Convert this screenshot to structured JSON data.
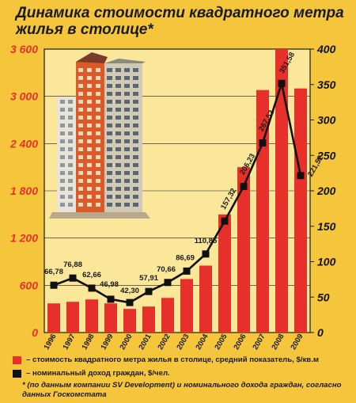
{
  "title": "Динамика стоимости квадратного метра жилья в столице*",
  "colors": {
    "background": "#f5c63c",
    "plot_background": "#fbe79a",
    "bar": "#e8302a",
    "line": "#111111",
    "left_axis_text": "#e8302a",
    "right_axis_text": "#111111"
  },
  "chart_data": {
    "type": "bar",
    "categories": [
      "1996",
      "1997",
      "1998",
      "1999",
      "2000",
      "2001",
      "2002",
      "2003",
      "2004",
      "2005",
      "2006",
      "2007",
      "2008",
      "2009"
    ],
    "y_left": {
      "ticks": [
        "0",
        "600",
        "1 200",
        "1 800",
        "2 400",
        "3 000",
        "3 600"
      ],
      "range": [
        0,
        3600
      ]
    },
    "y_right": {
      "ticks": [
        "0",
        "50",
        "100",
        "150",
        "200",
        "250",
        "300",
        "350",
        "400"
      ],
      "range": [
        0,
        400
      ]
    },
    "grid": true,
    "series": [
      {
        "name": "– стоимость квадратного метра жилья в столице, средний показатель, $/кв.м",
        "axis": "left",
        "kind": "bar",
        "values": [
          370,
          390,
          420,
          370,
          300,
          330,
          440,
          680,
          850,
          1500,
          2100,
          3080,
          3620,
          3100
        ]
      },
      {
        "name": "– номинальный доход граждан, $/чел.",
        "axis": "right",
        "kind": "line",
        "values": [
          66.78,
          76.88,
          62.66,
          46.98,
          42.3,
          57.91,
          70.66,
          86.69,
          110.85,
          157.32,
          206.23,
          267.52,
          351.58,
          221.52
        ],
        "labels": [
          "66,78",
          "76,88",
          "62,66",
          "46,98",
          "42,30",
          "57,91",
          "70,66",
          "86,69",
          "110,85",
          "157,32",
          "206,23",
          "267,52",
          "351,58",
          "221,52"
        ]
      }
    ],
    "legend_position": "bottom"
  },
  "footnote": "* (по данным компании SV Development) и номинального дохода граждан, согласно данных Госкомстата",
  "illustration": {
    "icon": "apartment-building-icon"
  }
}
